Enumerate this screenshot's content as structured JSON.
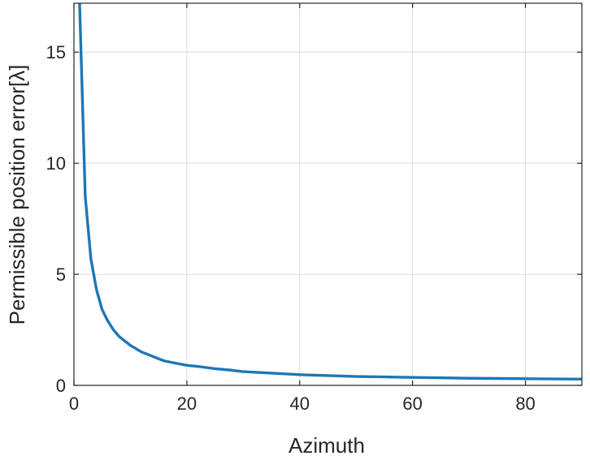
{
  "chart_data": {
    "type": "line",
    "title": "",
    "xlabel": "Azimuth",
    "ylabel": "Permissible position error[λ]",
    "xlim": [
      0,
      90
    ],
    "ylim": [
      0,
      17.2
    ],
    "xticks": [
      0,
      20,
      40,
      60,
      80
    ],
    "yticks": [
      0,
      5,
      10,
      15
    ],
    "grid": true,
    "legend": "none",
    "series": [
      {
        "color": "#1f77b4",
        "x": [
          1,
          2,
          3,
          4,
          5,
          6,
          7,
          8,
          9,
          10,
          12,
          14,
          16,
          18,
          20,
          22,
          25,
          28,
          30,
          35,
          40,
          45,
          50,
          55,
          60,
          65,
          70,
          75,
          80,
          85,
          90
        ],
        "y": [
          17.2,
          8.5,
          5.7,
          4.3,
          3.4,
          2.9,
          2.5,
          2.2,
          2.0,
          1.8,
          1.5,
          1.3,
          1.1,
          1.0,
          0.9,
          0.85,
          0.75,
          0.68,
          0.62,
          0.55,
          0.48,
          0.44,
          0.4,
          0.38,
          0.36,
          0.34,
          0.32,
          0.31,
          0.3,
          0.29,
          0.28
        ]
      }
    ]
  }
}
